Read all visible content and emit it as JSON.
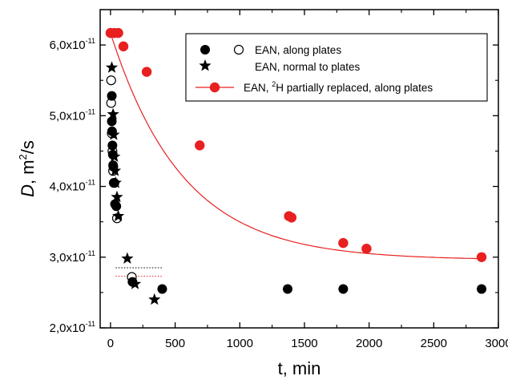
{
  "chart_data": {
    "type": "scatter",
    "xlabel": "t, min",
    "ylabel": {
      "main": "D",
      "rest": ", m",
      "sup": "2",
      "tail": "/s"
    },
    "xlim": [
      -80,
      3000
    ],
    "ylim": [
      2.0,
      6.5
    ],
    "y_multiplier_label": {
      "base": "x10",
      "exp": "-11"
    },
    "x_ticks": [
      0,
      500,
      1000,
      1500,
      2000,
      2500,
      3000
    ],
    "y_ticks": [
      2.0,
      3.0,
      4.0,
      5.0,
      6.0
    ],
    "y_tick_labels": [
      "2,0",
      "3,0",
      "4,0",
      "5,0",
      "6,0"
    ],
    "grid": false,
    "legend_position": "top-right",
    "legend": [
      {
        "label": "EAN, along plates",
        "marker": "filled-and-open-circle"
      },
      {
        "label": "EAN, normal to plates",
        "marker": "star"
      },
      {
        "label_before": "EAN, ",
        "label_sup": "2",
        "label_after": "H partially replaced, along plates",
        "marker": "red-circle-with-line"
      }
    ],
    "series": [
      {
        "name": "EAN, along plates",
        "marker": "filled-circle",
        "color": "#000000",
        "x": [
          10,
          10,
          12,
          15,
          18,
          20,
          22,
          25,
          35,
          45,
          170,
          400,
          1370,
          1800,
          2870
        ],
        "y": [
          5.28,
          4.92,
          4.78,
          4.58,
          4.45,
          4.3,
          4.28,
          4.05,
          3.75,
          3.72,
          2.65,
          2.55,
          2.55,
          2.55,
          2.55
        ]
      },
      {
        "name": "EAN, along plates (open)",
        "marker": "open-circle",
        "color": "#000000",
        "x": [
          5,
          5,
          10,
          15,
          20,
          30,
          50,
          165
        ],
        "y": [
          5.5,
          5.18,
          4.75,
          4.5,
          4.22,
          4.05,
          3.55,
          2.72
        ]
      },
      {
        "name": "EAN, normal to plates",
        "marker": "star",
        "color": "#000000",
        "x": [
          10,
          20,
          25,
          30,
          35,
          40,
          50,
          60,
          130,
          190,
          340
        ],
        "y": [
          5.68,
          5.02,
          4.73,
          4.42,
          4.22,
          4.05,
          3.85,
          3.58,
          2.98,
          2.62,
          2.4
        ]
      },
      {
        "name": "EAN, 2H partially replaced, along plates",
        "marker": "red-circle",
        "color": "#e82020",
        "x": [
          0,
          30,
          60,
          100,
          280,
          690,
          1380,
          1400,
          1800,
          1980,
          2870
        ],
        "y": [
          6.17,
          6.17,
          6.17,
          5.98,
          5.62,
          4.58,
          3.58,
          3.56,
          3.2,
          3.12,
          3.0
        ]
      }
    ],
    "fit_curve": {
      "color": "#e82020",
      "form": "exponential-decay",
      "y0": 6.17,
      "y_inf": 2.96,
      "tau": 560
    },
    "reference_lines": [
      {
        "y": 2.85,
        "color": "#000000",
        "style": "dotted",
        "x_from": 40,
        "x_to": 400
      },
      {
        "y": 2.73,
        "color": "#e82020",
        "style": "dotted",
        "x_from": 40,
        "x_to": 400
      }
    ]
  }
}
